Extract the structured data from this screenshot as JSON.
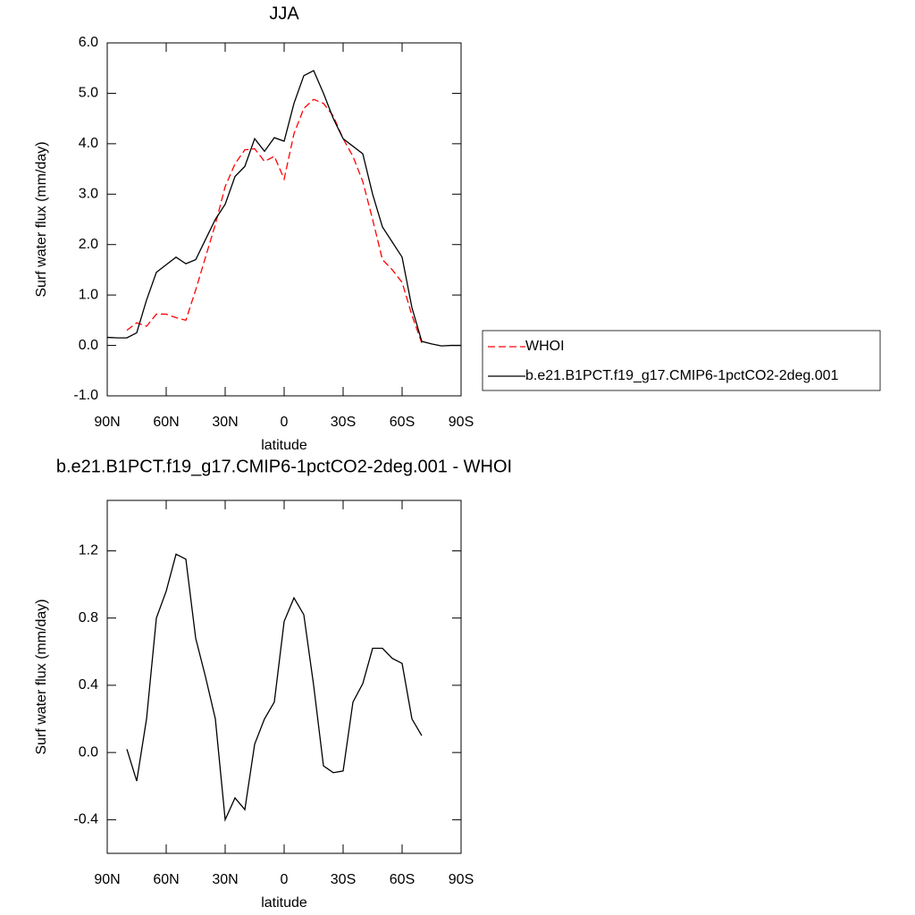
{
  "chart_data": [
    {
      "type": "line",
      "title": "JJA",
      "xlabel": "latitude",
      "ylabel": "Surf water flux (mm/day)",
      "x": [
        90,
        85,
        80,
        75,
        70,
        65,
        60,
        55,
        50,
        45,
        40,
        35,
        30,
        25,
        20,
        15,
        10,
        5,
        0,
        -5,
        -10,
        -15,
        -20,
        -25,
        -30,
        -35,
        -40,
        -45,
        -50,
        -55,
        -60,
        -65,
        -70,
        -75,
        -80,
        -85,
        -90
      ],
      "series": [
        {
          "name": "WHOI",
          "color": "#ff0000",
          "dash": true,
          "values": [
            null,
            null,
            0.3,
            0.45,
            0.38,
            0.62,
            0.62,
            0.55,
            0.5,
            1.1,
            1.75,
            2.4,
            3.15,
            3.6,
            3.88,
            3.9,
            3.65,
            3.75,
            3.3,
            4.2,
            4.7,
            4.88,
            4.8,
            4.55,
            4.1,
            3.75,
            3.25,
            2.5,
            1.7,
            1.5,
            1.25,
            0.6,
            0.05,
            null,
            null,
            null,
            null
          ]
        },
        {
          "name": "b.e21.B1PCT.f19_g17.CMIP6-1pctCO2-2deg.001",
          "color": "#000000",
          "dash": false,
          "values": [
            0.16,
            0.15,
            0.15,
            0.25,
            0.9,
            1.45,
            1.6,
            1.75,
            1.62,
            1.7,
            2.1,
            2.5,
            2.8,
            3.35,
            3.55,
            4.1,
            3.85,
            4.12,
            4.05,
            4.8,
            5.35,
            5.45,
            5.0,
            4.5,
            4.1,
            3.95,
            3.8,
            3.0,
            2.35,
            2.05,
            1.75,
            0.75,
            0.08,
            0.03,
            -0.01,
            0.0,
            0.0
          ]
        }
      ],
      "xlim": [
        90,
        -90
      ],
      "xticks": [
        {
          "value": 90,
          "label": "90N"
        },
        {
          "value": 60,
          "label": "60N"
        },
        {
          "value": 30,
          "label": "30N"
        },
        0,
        {
          "value": -30,
          "label": "30S"
        },
        {
          "value": -60,
          "label": "60S"
        },
        {
          "value": -90,
          "label": "90S"
        }
      ],
      "ylim": [
        -1,
        6
      ],
      "yticks": [
        {
          "value": -1,
          "label": "-1.0"
        },
        {
          "value": 0,
          "label": "0.0"
        },
        {
          "value": 1,
          "label": "1.0"
        },
        {
          "value": 2,
          "label": "2.0"
        },
        {
          "value": 3,
          "label": "3.0"
        },
        {
          "value": 4,
          "label": "4.0"
        },
        {
          "value": 5,
          "label": "5.0"
        },
        {
          "value": 6,
          "label": "6.0"
        }
      ],
      "legend": "right"
    },
    {
      "type": "line",
      "title": "b.e21.B1PCT.f19_g17.CMIP6-1pctCO2-2deg.001 - WHOI",
      "xlabel": "latitude",
      "ylabel": "Surf water flux (mm/day)",
      "x": [
        80,
        75,
        70,
        65,
        60,
        55,
        50,
        45,
        40,
        35,
        30,
        25,
        20,
        15,
        10,
        5,
        0,
        -5,
        -10,
        -15,
        -20,
        -25,
        -30,
        -35,
        -40,
        -45,
        -50,
        -55,
        -60,
        -65,
        -70
      ],
      "series": [
        {
          "color": "#000000",
          "values": [
            0.02,
            -0.17,
            0.2,
            0.8,
            0.96,
            1.18,
            1.15,
            0.68,
            0.45,
            0.2,
            -0.4,
            -0.27,
            -0.34,
            0.05,
            0.2,
            0.3,
            0.78,
            0.92,
            0.82,
            0.4,
            -0.08,
            -0.12,
            -0.11,
            0.3,
            0.41,
            0.62,
            0.62,
            0.56,
            0.53,
            0.2,
            0.1
          ]
        }
      ],
      "xlim": [
        90,
        -90
      ],
      "xticks": [
        {
          "value": 90,
          "label": "90N"
        },
        {
          "value": 60,
          "label": "60N"
        },
        {
          "value": 30,
          "label": "30N"
        },
        0,
        {
          "value": -30,
          "label": "30S"
        },
        {
          "value": -60,
          "label": "60S"
        },
        {
          "value": -90,
          "label": "90S"
        }
      ],
      "ylim": [
        -0.6,
        1.5
      ],
      "yticks": [
        -0.4,
        {
          "value": 0,
          "label": "0.0"
        },
        0.4,
        0.8,
        1.2
      ]
    }
  ]
}
